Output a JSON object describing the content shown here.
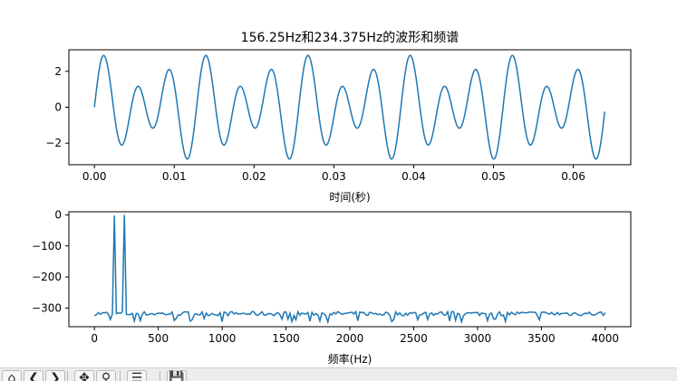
{
  "chart_data": [
    {
      "type": "line",
      "title": "156.25Hz和234.375Hz的波形和频谱",
      "xlabel": "时间(秒)",
      "ylabel": "",
      "xlim": [
        -0.0032,
        0.0672
      ],
      "ylim": [
        -3.2,
        3.2
      ],
      "xticks": [
        "0.00",
        "0.01",
        "0.02",
        "0.03",
        "0.04",
        "0.05",
        "0.06"
      ],
      "yticks": [
        "−2",
        "0",
        "2"
      ],
      "series": [
        {
          "color": "#1f77b4",
          "x_start": 0.0,
          "x_end": 0.0639375,
          "samples": 512,
          "components": [
            {
              "freq_hz": 156.25,
              "amplitude": 1.0
            },
            {
              "freq_hz": 234.375,
              "amplitude": 2.0
            }
          ]
        }
      ],
      "grid": false
    },
    {
      "type": "line",
      "title": "",
      "xlabel": "频率(Hz)",
      "ylabel": "",
      "xlim": [
        -200,
        4200
      ],
      "ylim": [
        -360,
        10
      ],
      "xticks": [
        "0",
        "500",
        "1000",
        "1500",
        "2000",
        "2500",
        "3000",
        "3500",
        "4000"
      ],
      "yticks": [
        "−300",
        "−200",
        "−100",
        "0"
      ],
      "series": [
        {
          "color": "#1f77b4",
          "x_start": 0,
          "x_end": 4000,
          "bins": 257,
          "noise_floor": -318,
          "noise_range": [
            -345,
            -300
          ],
          "peaks": [
            {
              "freq_hz": 156.25,
              "value": -2
            },
            {
              "freq_hz": 234.375,
              "value": 0
            }
          ]
        }
      ],
      "grid": false
    }
  ],
  "toolbar": {
    "buttons": [
      {
        "name": "home-button",
        "icon": "⌂"
      },
      {
        "name": "back-button",
        "icon": "❮"
      },
      {
        "name": "forward-button",
        "icon": "❯"
      },
      {
        "name": "pan-button",
        "icon": "✥"
      },
      {
        "name": "zoom-button",
        "icon": "⚲"
      },
      {
        "name": "configure-subplots-button",
        "icon": "☰"
      },
      {
        "name": "save-button",
        "icon": "💾"
      }
    ]
  }
}
